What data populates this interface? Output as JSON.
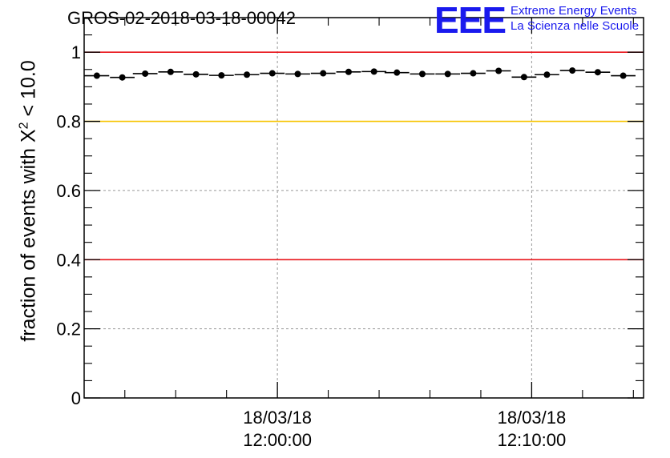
{
  "title": "GROS-02-2018-03-18-00042",
  "logo": {
    "mark": "EEE",
    "line1": "Extreme Energy Events",
    "line2": "La Scienza nelle Scuole"
  },
  "chart_data": {
    "type": "scatter",
    "ylabel_prefix": "fraction of events with X",
    "ylabel_sup": "2",
    "ylabel_suffix": " < 10.0",
    "ylim": [
      0,
      1.1
    ],
    "y_ticks": [
      "0",
      "0.2",
      "0.4",
      "0.6",
      "0.8",
      "1"
    ],
    "x_ticks": [
      {
        "date": "18/03/18",
        "time": "12:00:00",
        "minutes": 0
      },
      {
        "date": "18/03/18",
        "time": "12:10:00",
        "minutes": 10
      }
    ],
    "xlim_minutes": [
      -7.6,
      14.4
    ],
    "bin_width_minutes": 0.97,
    "grid": true,
    "points": [
      {
        "x": -7.1,
        "y": 0.932
      },
      {
        "x": -6.1,
        "y": 0.927
      },
      {
        "x": -5.2,
        "y": 0.938
      },
      {
        "x": -4.2,
        "y": 0.943
      },
      {
        "x": -3.2,
        "y": 0.936
      },
      {
        "x": -2.2,
        "y": 0.933
      },
      {
        "x": -1.2,
        "y": 0.935
      },
      {
        "x": -0.2,
        "y": 0.939
      },
      {
        "x": 0.8,
        "y": 0.937
      },
      {
        "x": 1.8,
        "y": 0.939
      },
      {
        "x": 2.8,
        "y": 0.943
      },
      {
        "x": 3.8,
        "y": 0.944
      },
      {
        "x": 4.7,
        "y": 0.941
      },
      {
        "x": 5.7,
        "y": 0.937
      },
      {
        "x": 6.7,
        "y": 0.937
      },
      {
        "x": 7.7,
        "y": 0.939
      },
      {
        "x": 8.7,
        "y": 0.946
      },
      {
        "x": 9.7,
        "y": 0.928
      },
      {
        "x": 10.6,
        "y": 0.935
      },
      {
        "x": 11.6,
        "y": 0.947
      },
      {
        "x": 12.6,
        "y": 0.942
      },
      {
        "x": 13.6,
        "y": 0.932
      }
    ],
    "reference_lines": [
      {
        "y": 1.0,
        "color": "#e8141a"
      },
      {
        "y": 0.8,
        "color": "#f7c400"
      },
      {
        "y": 0.4,
        "color": "#e8141a"
      }
    ],
    "colors": {
      "marker": "#000000",
      "grid": "#999999",
      "frame": "#000000"
    }
  }
}
